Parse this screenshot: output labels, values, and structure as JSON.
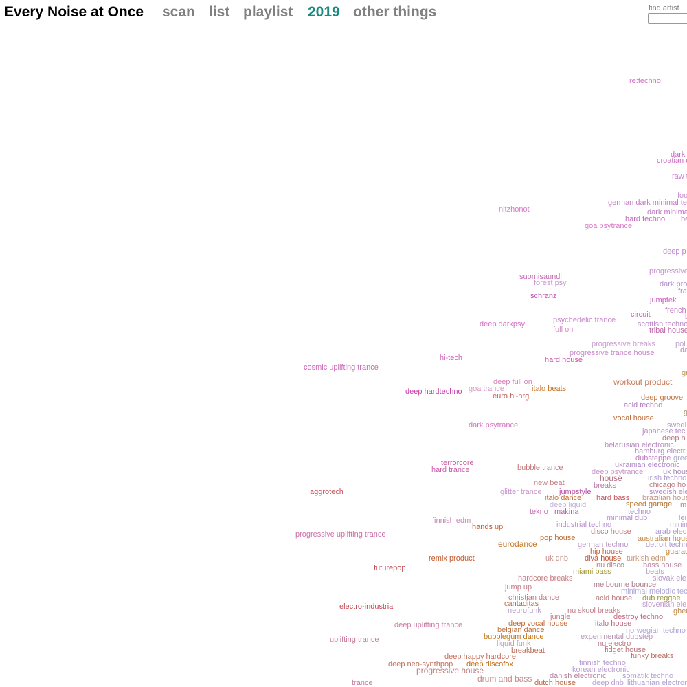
{
  "header": {
    "title": "Every Noise at Once",
    "nav": [
      {
        "label": "scan",
        "color": "#808080"
      },
      {
        "label": "list",
        "color": "#808080"
      },
      {
        "label": "playlist",
        "color": "#808080"
      },
      {
        "label": "2019",
        "color": "#1a8a80"
      },
      {
        "label": "other things",
        "color": "#808080"
      }
    ]
  },
  "search": {
    "label": "find artist",
    "value": "",
    "placeholder": ""
  },
  "genres": [
    {
      "label": "re:techno",
      "color": "#d070c8"
    },
    {
      "label": "dark",
      "color": "#c96cc4"
    },
    {
      "label": "croatian e",
      "color": "#cc70c0"
    },
    {
      "label": "raw t",
      "color": "#d080cc"
    },
    {
      "label": "foo",
      "color": "#c88ccf"
    },
    {
      "label": "german dark minimal te",
      "color": "#c87cc8"
    },
    {
      "label": "dark minima",
      "color": "#c078c8"
    },
    {
      "label": "nitzhonot",
      "color": "#d77cc6"
    },
    {
      "label": "hard techno",
      "color": "#c566ba"
    },
    {
      "label": "be",
      "color": "#b97cc4"
    },
    {
      "label": "goa psytrance",
      "color": "#d77cc6"
    },
    {
      "label": "deep p",
      "color": "#bc88cd"
    },
    {
      "label": "progressive",
      "color": "#c692d0"
    },
    {
      "label": "suomisaundi",
      "color": "#c86ab5"
    },
    {
      "label": "forest psy",
      "color": "#c89ad2"
    },
    {
      "label": "dark pro",
      "color": "#b290d0"
    },
    {
      "label": "fra",
      "color": "#c486cc"
    },
    {
      "label": "schranz",
      "color": "#c14fb4"
    },
    {
      "label": "jumptek",
      "color": "#cc5cbc"
    },
    {
      "label": "french",
      "color": "#c07cc0"
    },
    {
      "label": "b",
      "color": "#b87cbc"
    },
    {
      "label": "circuit",
      "color": "#c568b8"
    },
    {
      "label": "deep darkpsy",
      "color": "#d470c6"
    },
    {
      "label": "psychedelic trance",
      "color": "#cc88cc"
    },
    {
      "label": "scottish techno",
      "color": "#c08ccc"
    },
    {
      "label": "full on",
      "color": "#d38cc6"
    },
    {
      "label": "tribal house",
      "color": "#c066a8"
    },
    {
      "label": "progressive breaks",
      "color": "#c99ad2"
    },
    {
      "label": "pol",
      "color": "#c0a0d0"
    },
    {
      "label": "da",
      "color": "#b88ab8"
    },
    {
      "label": "progressive trance house",
      "color": "#c88acc"
    },
    {
      "label": "hi-tech",
      "color": "#d262b8"
    },
    {
      "label": "hard house",
      "color": "#c75aa8"
    },
    {
      "label": "cosmic uplifting trance",
      "color": "#cc6cb8"
    },
    {
      "label": "gr",
      "color": "#b8944e"
    },
    {
      "label": "deep full on",
      "color": "#d87cb8"
    },
    {
      "label": "workout product",
      "color": "#c27e5c"
    },
    {
      "label": "deep hardtechno",
      "color": "#c83ea8"
    },
    {
      "label": "goa trance",
      "color": "#d89ac4"
    },
    {
      "label": "italo beats",
      "color": "#c8782e"
    },
    {
      "label": "euro hi-nrg",
      "color": "#c2584c"
    },
    {
      "label": "acid techno",
      "color": "#b27ac0"
    },
    {
      "label": "deep groove",
      "color": "#c27a4a"
    },
    {
      "label": "g",
      "color": "#a89a70"
    },
    {
      "label": "vocal house",
      "color": "#c06c3c"
    },
    {
      "label": "swedi",
      "color": "#b098cc"
    },
    {
      "label": "dark psytrance",
      "color": "#d276c0"
    },
    {
      "label": "japanese tec",
      "color": "#ba8cca"
    },
    {
      "label": "deep h",
      "color": "#b67a7a"
    },
    {
      "label": "belarusian electronic",
      "color": "#b88cc2"
    },
    {
      "label": "hamburg electr",
      "color": "#b088c0"
    },
    {
      "label": "dubsteppe",
      "color": "#c07cc0"
    },
    {
      "label": "gree",
      "color": "#a8a8c8"
    },
    {
      "label": "terrorcore",
      "color": "#cc5ca0"
    },
    {
      "label": "ukrainian electronic",
      "color": "#b088c8"
    },
    {
      "label": "hard trance",
      "color": "#cc5ca8"
    },
    {
      "label": "bubble trance",
      "color": "#c27a7c"
    },
    {
      "label": "deep psytrance",
      "color": "#c896cc"
    },
    {
      "label": "uk hous",
      "color": "#a888b8"
    },
    {
      "label": "house",
      "color": "#b66c7e"
    },
    {
      "label": "irish techno",
      "color": "#b09cd0"
    },
    {
      "label": "new beat",
      "color": "#c78484"
    },
    {
      "label": "breaks",
      "color": "#ba7aa8"
    },
    {
      "label": "chicago ho",
      "color": "#c07a80"
    },
    {
      "label": "brazilian hous",
      "color": "#c0988c"
    },
    {
      "label": "aggrotech",
      "color": "#c84e56"
    },
    {
      "label": "glitter trance",
      "color": "#c898cc"
    },
    {
      "label": "jumpstyle",
      "color": "#b84ca0"
    },
    {
      "label": "swedish ele",
      "color": "#b08cd0"
    },
    {
      "label": "italo dance",
      "color": "#c86c34"
    },
    {
      "label": "hard bass",
      "color": "#c25864"
    },
    {
      "label": "m",
      "color": "#c08080"
    },
    {
      "label": "deep liquid",
      "color": "#c0b0d8"
    },
    {
      "label": "speed garage",
      "color": "#b4742c"
    },
    {
      "label": "tekno",
      "color": "#c46cb0"
    },
    {
      "label": "makina",
      "color": "#c25cb0"
    },
    {
      "label": "techno",
      "color": "#b09ad0"
    },
    {
      "label": "minimal dub",
      "color": "#b28cd0"
    },
    {
      "label": "lei",
      "color": "#b09cd0"
    },
    {
      "label": "finnish edm",
      "color": "#c888b4"
    },
    {
      "label": "industrial techno",
      "color": "#b890d0"
    },
    {
      "label": "minim",
      "color": "#b8a0d8"
    },
    {
      "label": "hands up",
      "color": "#c85c2c"
    },
    {
      "label": "disco house",
      "color": "#c47c78"
    },
    {
      "label": "arab elec",
      "color": "#b09cd0"
    },
    {
      "label": "progressive uplifting trance",
      "color": "#cc70a8"
    },
    {
      "label": "pop house",
      "color": "#c46c30"
    },
    {
      "label": "australian hous",
      "color": "#c48a4c"
    },
    {
      "label": "eurodance",
      "color": "#c4782c"
    },
    {
      "label": "german techno",
      "color": "#b896c8"
    },
    {
      "label": "detroit techn",
      "color": "#b098cc"
    },
    {
      "label": "hip house",
      "color": "#c46838"
    },
    {
      "label": "guarac",
      "color": "#c08a46"
    },
    {
      "label": "remix product",
      "color": "#c45a2c"
    },
    {
      "label": "uk dnb",
      "color": "#c89088"
    },
    {
      "label": "diva house",
      "color": "#c05838"
    },
    {
      "label": "turkish edm",
      "color": "#c89c80"
    },
    {
      "label": "futurepop",
      "color": "#c04c56"
    },
    {
      "label": "nu disco",
      "color": "#b8868c"
    },
    {
      "label": "bass house",
      "color": "#b880a0"
    },
    {
      "label": "miami bass",
      "color": "#a09836"
    },
    {
      "label": "beats",
      "color": "#a8a0c8"
    },
    {
      "label": "hardcore breaks",
      "color": "#c47e84"
    },
    {
      "label": "slovak ele",
      "color": "#b898c8"
    },
    {
      "label": "jump up",
      "color": "#c07e88"
    },
    {
      "label": "melbourne bounce",
      "color": "#b07c90"
    },
    {
      "label": "minimal melodic tec",
      "color": "#b0a8d8"
    },
    {
      "label": "christian dance",
      "color": "#c47a84"
    },
    {
      "label": "acid house",
      "color": "#c28080"
    },
    {
      "label": "dub reggae",
      "color": "#a0983c"
    },
    {
      "label": "cantaditas",
      "color": "#c06a40"
    },
    {
      "label": "slovenian ele",
      "color": "#c09cc8"
    },
    {
      "label": "electro-industrial",
      "color": "#c24c56"
    },
    {
      "label": "neurofunk",
      "color": "#b698c8"
    },
    {
      "label": "nu skool breaks",
      "color": "#c4808c"
    },
    {
      "label": "ghet",
      "color": "#c08a50"
    },
    {
      "label": "jungle",
      "color": "#c48484"
    },
    {
      "label": "destroy techno",
      "color": "#c06a84"
    },
    {
      "label": "deep uplifting trance",
      "color": "#cc7ca8"
    },
    {
      "label": "deep vocal house",
      "color": "#c46a34"
    },
    {
      "label": "italo house",
      "color": "#c0687c"
    },
    {
      "label": "belgian dance",
      "color": "#c4703c"
    },
    {
      "label": "norwegian techno",
      "color": "#b0a8d8"
    },
    {
      "label": "uplifting trance",
      "color": "#c87c9c"
    },
    {
      "label": "bubblegum dance",
      "color": "#c07414"
    },
    {
      "label": "experimental dubstep",
      "color": "#b496b4"
    },
    {
      "label": "liquid funk",
      "color": "#b8a0c8"
    },
    {
      "label": "nu electro",
      "color": "#c07c90"
    },
    {
      "label": "breakbeat",
      "color": "#c0705c"
    },
    {
      "label": "fidget house",
      "color": "#b87078"
    },
    {
      "label": "deep happy hardcore",
      "color": "#c87060"
    },
    {
      "label": "funky breaks",
      "color": "#b87468"
    },
    {
      "label": "finnish techno",
      "color": "#b89ad0"
    },
    {
      "label": "deep neo-synthpop",
      "color": "#c0705c"
    },
    {
      "label": "deep discofox",
      "color": "#c06c0c"
    },
    {
      "label": "progressive house",
      "color": "#c08484"
    },
    {
      "label": "korean electronic",
      "color": "#b8a0d0"
    },
    {
      "label": "danish electronic",
      "color": "#b880a0"
    },
    {
      "label": "somatik techno",
      "color": "#b8a0d0"
    },
    {
      "label": "drum and bass",
      "color": "#c08c8c"
    },
    {
      "label": "trance",
      "color": "#c87ca0"
    },
    {
      "label": "dutch house",
      "color": "#b86840"
    },
    {
      "label": "deep dnb",
      "color": "#b8a0d0"
    },
    {
      "label": "lithuanian electron",
      "color": "#b0a0d0"
    }
  ]
}
